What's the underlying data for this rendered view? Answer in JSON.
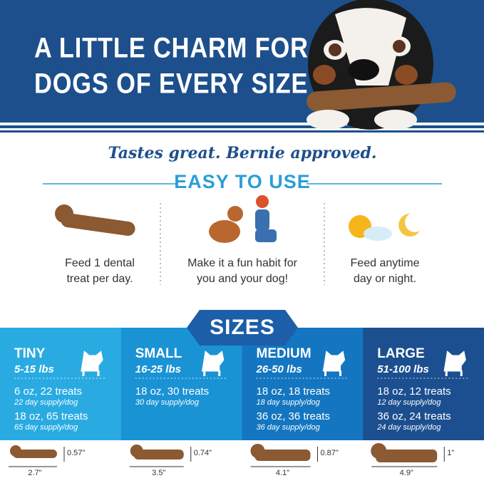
{
  "header": {
    "title_lines": [
      "A LITTLE CHARM FOR",
      "DOGS OF EVERY SIZE"
    ]
  },
  "tagline": "Tastes great. Bernie approved.",
  "easy_to_use": {
    "title": "EASY TO USE",
    "items": [
      {
        "lines": [
          "Feed 1 dental",
          "treat per day."
        ]
      },
      {
        "lines": [
          "Make it a fun habit for",
          "you and your dog!"
        ]
      },
      {
        "lines": [
          "Feed anytime",
          "day or night."
        ]
      }
    ]
  },
  "sizes": {
    "title": "SIZES",
    "items": [
      {
        "name": "TINY",
        "weight": "5-15 lbs",
        "options": [
          {
            "pack": "6 oz, 22 treats",
            "supply": "22 day supply/dog"
          },
          {
            "pack": "18 oz, 65 treats",
            "supply": "65 day supply/dog"
          }
        ],
        "height": "0.57\"",
        "length": "2.7\""
      },
      {
        "name": "SMALL",
        "weight": "16-25 lbs",
        "options": [
          {
            "pack": "18 oz, 30 treats",
            "supply": "30 day supply/dog"
          }
        ],
        "height": "0.74\"",
        "length": "3.5\""
      },
      {
        "name": "MEDIUM",
        "weight": "26-50 lbs",
        "options": [
          {
            "pack": "18 oz, 18 treats",
            "supply": "18 day supply/dog"
          },
          {
            "pack": "36 oz, 36 treats",
            "supply": "36 day supply/dog"
          }
        ],
        "height": "0.87\"",
        "length": "4.1\""
      },
      {
        "name": "LARGE",
        "weight": "51-100 lbs",
        "options": [
          {
            "pack": "18 oz, 12 treats",
            "supply": "12 day supply/dog"
          },
          {
            "pack": "36 oz, 24 treats",
            "supply": "24 day supply/dog"
          }
        ],
        "height": "1\"",
        "length": "4.9\""
      }
    ]
  }
}
